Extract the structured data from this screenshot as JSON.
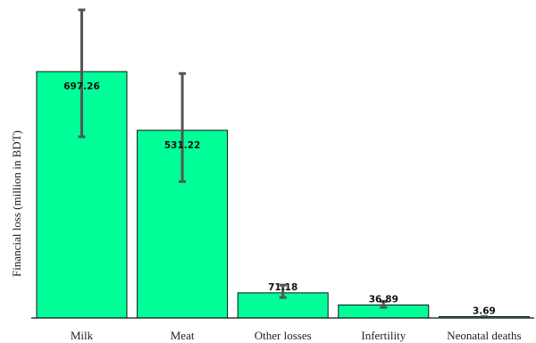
{
  "chart_data": {
    "type": "bar",
    "categories": [
      "Milk",
      "Meat",
      "Other losses",
      "Infertility",
      "Neonatal deaths"
    ],
    "values": [
      697.26,
      531.22,
      71.18,
      36.89,
      3.69
    ],
    "error_low": [
      513,
      386,
      58,
      30,
      3
    ],
    "error_high": [
      872,
      692,
      93,
      47,
      4
    ],
    "labels": [
      "697.26",
      "531.22",
      "71.18",
      "36.89",
      "3.69"
    ],
    "title": "",
    "xlabel": "",
    "ylabel": "Financial loss (million  in BDT)",
    "ylim": [
      0,
      900
    ],
    "grid": false,
    "bar_color": "#00FF99"
  }
}
